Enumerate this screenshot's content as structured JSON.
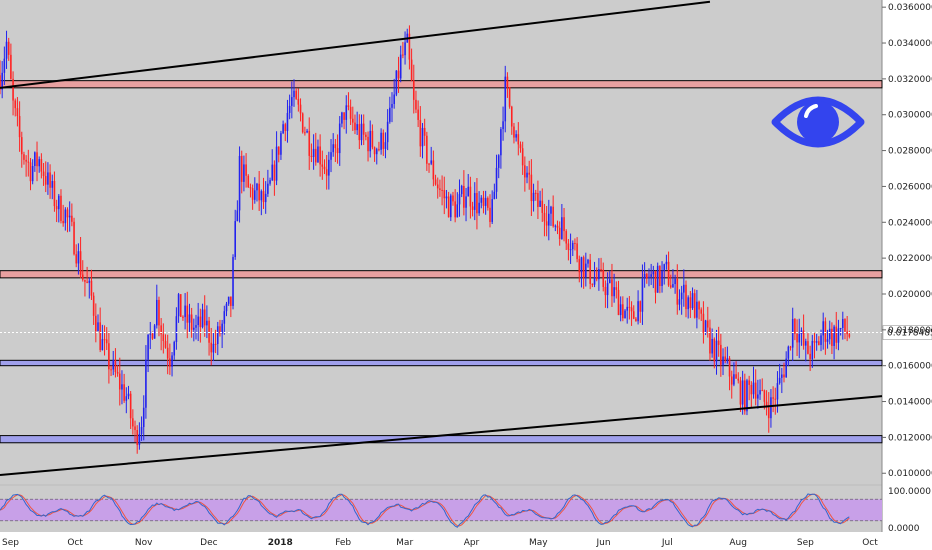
{
  "colors": {
    "background": "#cccccc",
    "up": "#2222ee",
    "down": "#ff2222",
    "resistance_zone": "#e8a0a0",
    "support_zone": "#a0a0ec",
    "trendline": "#000000",
    "eye_icon": "#3344ee",
    "stoch_band": "#c8a0e8",
    "stoch_k": "#3366cc",
    "stoch_d": "#ee5544"
  },
  "icons": {
    "eye": "eye-icon"
  },
  "chart_data": [
    {
      "type": "candlestick",
      "title": "",
      "ylim": [
        0.0094,
        0.0364
      ],
      "y_ticks": [
        "0.03600000",
        "0.03400000",
        "0.03200000",
        "0.03000000",
        "0.02800000",
        "0.02600000",
        "0.02400000",
        "0.02200000",
        "0.02000000",
        "0.01800000",
        "0.01600000",
        "0.01400000",
        "0.01200000",
        "0.01000000"
      ],
      "y_tick_values": [
        0.036,
        0.034,
        0.032,
        0.03,
        0.028,
        0.026,
        0.024,
        0.022,
        0.02,
        0.018,
        0.016,
        0.014,
        0.012,
        0.01
      ],
      "x_ticks": [
        "Sep",
        "Oct",
        "Nov",
        "Dec",
        "2018",
        "Feb",
        "Mar",
        "Apr",
        "May",
        "Jun",
        "Jul",
        "Aug",
        "Sep",
        "Oct"
      ],
      "x_tick_values": [
        0,
        30,
        61,
        91,
        122,
        153,
        181,
        212,
        242,
        273,
        303,
        334,
        365,
        395
      ],
      "x_range": [
        0,
        405
      ],
      "last_price": "0.01784856",
      "last_price_value": 0.01784856,
      "close_path": [
        [
          0,
          0.0322
        ],
        [
          3,
          0.034
        ],
        [
          6,
          0.0305
        ],
        [
          10,
          0.028
        ],
        [
          14,
          0.027
        ],
        [
          18,
          0.0275
        ],
        [
          22,
          0.0262
        ],
        [
          26,
          0.025
        ],
        [
          30,
          0.0245
        ],
        [
          34,
          0.023
        ],
        [
          38,
          0.021
        ],
        [
          42,
          0.0198
        ],
        [
          46,
          0.0175
        ],
        [
          50,
          0.0162
        ],
        [
          54,
          0.0152
        ],
        [
          58,
          0.0143
        ],
        [
          62,
          0.012
        ],
        [
          65,
          0.013
        ],
        [
          68,
          0.017
        ],
        [
          72,
          0.0195
        ],
        [
          75,
          0.0175
        ],
        [
          78,
          0.0165
        ],
        [
          82,
          0.0192
        ],
        [
          86,
          0.0185
        ],
        [
          90,
          0.018
        ],
        [
          94,
          0.0185
        ],
        [
          98,
          0.017
        ],
        [
          102,
          0.0182
        ],
        [
          106,
          0.0195
        ],
        [
          110,
          0.0272
        ],
        [
          114,
          0.0258
        ],
        [
          118,
          0.0255
        ],
        [
          122,
          0.025
        ],
        [
          126,
          0.027
        ],
        [
          130,
          0.0295
        ],
        [
          134,
          0.0308
        ],
        [
          138,
          0.03
        ],
        [
          142,
          0.0285
        ],
        [
          146,
          0.028
        ],
        [
          150,
          0.027
        ],
        [
          154,
          0.0278
        ],
        [
          158,
          0.0302
        ],
        [
          162,
          0.0295
        ],
        [
          166,
          0.0288
        ],
        [
          170,
          0.0285
        ],
        [
          174,
          0.0282
        ],
        [
          178,
          0.0292
        ],
        [
          181,
          0.031
        ],
        [
          184,
          0.033
        ],
        [
          187,
          0.0338
        ],
        [
          190,
          0.0305
        ],
        [
          194,
          0.0285
        ],
        [
          198,
          0.027
        ],
        [
          202,
          0.0258
        ],
        [
          206,
          0.025
        ],
        [
          210,
          0.0248
        ],
        [
          214,
          0.0258
        ],
        [
          218,
          0.0252
        ],
        [
          222,
          0.0246
        ],
        [
          226,
          0.0245
        ],
        [
          229,
          0.0282
        ],
        [
          232,
          0.0315
        ],
        [
          235,
          0.03
        ],
        [
          238,
          0.028
        ],
        [
          242,
          0.0262
        ],
        [
          246,
          0.025
        ],
        [
          250,
          0.0248
        ],
        [
          254,
          0.024
        ],
        [
          258,
          0.0238
        ],
        [
          262,
          0.023
        ],
        [
          266,
          0.022
        ],
        [
          270,
          0.0212
        ],
        [
          274,
          0.0208
        ],
        [
          278,
          0.0205
        ],
        [
          282,
          0.02
        ],
        [
          286,
          0.0192
        ],
        [
          290,
          0.0185
        ],
        [
          294,
          0.0198
        ],
        [
          298,
          0.021
        ],
        [
          302,
          0.0208
        ],
        [
          306,
          0.0212
        ],
        [
          310,
          0.0202
        ],
        [
          314,
          0.02
        ],
        [
          318,
          0.0195
        ],
        [
          322,
          0.0183
        ],
        [
          326,
          0.0173
        ],
        [
          330,
          0.0165
        ],
        [
          334,
          0.0158
        ],
        [
          338,
          0.015
        ],
        [
          342,
          0.0142
        ],
        [
          346,
          0.0152
        ],
        [
          350,
          0.014
        ],
        [
          354,
          0.0138
        ],
        [
          358,
          0.015
        ],
        [
          362,
          0.0168
        ],
        [
          364,
          0.0185
        ],
        [
          366,
          0.018
        ],
        [
          370,
          0.0168
        ],
        [
          374,
          0.0168
        ],
        [
          378,
          0.018
        ],
        [
          382,
          0.0177
        ],
        [
          386,
          0.018
        ],
        [
          390,
          0.0178
        ]
      ],
      "zones": [
        {
          "name": "resistance-zone-upper",
          "from": 0.0315,
          "to": 0.0319,
          "kind": "resistance"
        },
        {
          "name": "resistance-zone-lower",
          "from": 0.0209,
          "to": 0.0213,
          "kind": "resistance"
        },
        {
          "name": "support-zone-upper",
          "from": 0.016,
          "to": 0.0163,
          "kind": "support"
        },
        {
          "name": "support-zone-lower",
          "from": 0.0117,
          "to": 0.0121,
          "kind": "support"
        }
      ],
      "trendlines": [
        {
          "name": "upper-trendline",
          "x1": 0,
          "y1": 0.0315,
          "x2": 326,
          "y2": 0.0363
        },
        {
          "name": "lower-trendline",
          "x1": 0,
          "y1": 0.0099,
          "x2": 405,
          "y2": 0.0143
        }
      ]
    },
    {
      "type": "line",
      "indicator": "stochastic-rsi",
      "ylim": [
        0,
        100
      ],
      "y_ticks": [
        "100.0000",
        "0.0000"
      ],
      "y_tick_values": [
        100,
        0
      ],
      "band": [
        20,
        80
      ]
    }
  ]
}
